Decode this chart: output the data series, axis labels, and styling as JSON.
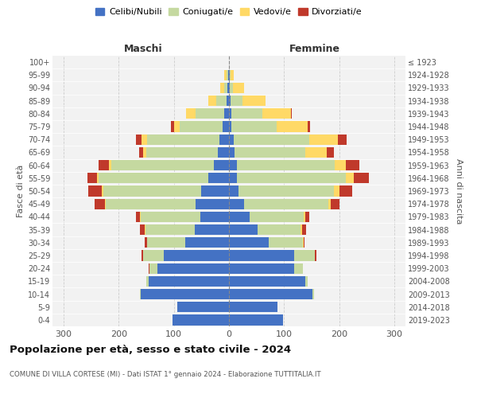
{
  "age_groups": [
    "0-4",
    "5-9",
    "10-14",
    "15-19",
    "20-24",
    "25-29",
    "30-34",
    "35-39",
    "40-44",
    "45-49",
    "50-54",
    "55-59",
    "60-64",
    "65-69",
    "70-74",
    "75-79",
    "80-84",
    "85-89",
    "90-94",
    "95-99",
    "100+"
  ],
  "birth_years": [
    "2019-2023",
    "2014-2018",
    "2009-2013",
    "2004-2008",
    "1999-2003",
    "1994-1998",
    "1989-1993",
    "1984-1988",
    "1979-1983",
    "1974-1978",
    "1969-1973",
    "1964-1968",
    "1959-1963",
    "1954-1958",
    "1949-1953",
    "1944-1948",
    "1939-1943",
    "1934-1938",
    "1929-1933",
    "1924-1928",
    "≤ 1923"
  ],
  "maschi": {
    "celibi": [
      103,
      93,
      160,
      145,
      130,
      118,
      80,
      62,
      52,
      60,
      50,
      38,
      28,
      20,
      18,
      12,
      8,
      5,
      3,
      2,
      0
    ],
    "coniugati": [
      0,
      0,
      2,
      5,
      14,
      38,
      68,
      90,
      108,
      163,
      178,
      198,
      185,
      130,
      130,
      78,
      52,
      18,
      5,
      3,
      0
    ],
    "vedovi": [
      0,
      0,
      0,
      0,
      0,
      0,
      0,
      1,
      1,
      2,
      2,
      3,
      4,
      5,
      10,
      10,
      18,
      14,
      8,
      3,
      0
    ],
    "divorziati": [
      0,
      0,
      0,
      0,
      1,
      3,
      5,
      8,
      8,
      18,
      25,
      18,
      20,
      8,
      10,
      5,
      0,
      0,
      0,
      0,
      0
    ]
  },
  "femmine": {
    "nubili": [
      98,
      88,
      152,
      138,
      118,
      118,
      72,
      52,
      38,
      28,
      18,
      14,
      14,
      10,
      8,
      5,
      5,
      3,
      2,
      1,
      0
    ],
    "coniugate": [
      0,
      0,
      2,
      5,
      16,
      38,
      62,
      78,
      98,
      152,
      172,
      198,
      178,
      128,
      138,
      82,
      55,
      22,
      5,
      2,
      0
    ],
    "vedove": [
      0,
      0,
      0,
      0,
      0,
      0,
      1,
      2,
      2,
      5,
      10,
      14,
      20,
      40,
      52,
      55,
      52,
      42,
      20,
      5,
      0
    ],
    "divorziate": [
      0,
      0,
      0,
      0,
      0,
      2,
      2,
      8,
      8,
      16,
      23,
      28,
      25,
      12,
      15,
      5,
      2,
      0,
      0,
      0,
      0
    ]
  },
  "colors": {
    "celibi": "#4472C4",
    "coniugati": "#C5D9A0",
    "vedovi": "#FFD966",
    "divorziati": "#C0392B"
  },
  "xlim": 320,
  "title": "Popolazione per età, sesso e stato civile - 2024",
  "subtitle": "COMUNE DI VILLA CORTESE (MI) - Dati ISTAT 1° gennaio 2024 - Elaborazione TUTTITALIA.IT",
  "ylabel_left": "Fasce di età",
  "ylabel_right": "Anni di nascita",
  "header_left": "Maschi",
  "header_right": "Femmine",
  "legend_labels": [
    "Celibi/Nubili",
    "Coniugati/e",
    "Vedovi/e",
    "Divorziati/e"
  ],
  "bg_color": "#FFFFFF",
  "plot_bg_color": "#F2F2F2"
}
